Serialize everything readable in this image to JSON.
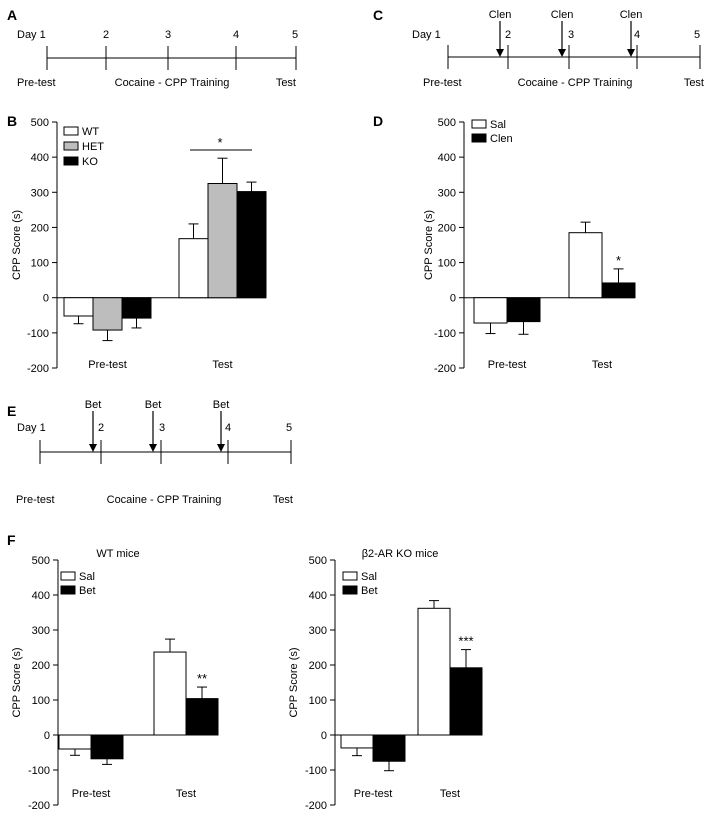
{
  "panel_labels": {
    "A": "A",
    "B": "B",
    "C": "C",
    "D": "D",
    "E": "E",
    "F": "F"
  },
  "timelines": [
    {
      "id": "A",
      "day_labels": [
        "Day 1",
        "2",
        "3",
        "4",
        "5"
      ],
      "phases": [
        "Pre-test",
        "Cocaine - CPP Training",
        "Test"
      ],
      "injections": []
    },
    {
      "id": "C",
      "day_labels": [
        "Day 1",
        "2",
        "3",
        "4",
        "5"
      ],
      "phases": [
        "Pre-test",
        "Cocaine - CPP Training",
        "Test"
      ],
      "injections": [
        "Clen",
        "Clen",
        "Clen"
      ]
    },
    {
      "id": "E",
      "day_labels": [
        "Day 1",
        "2",
        "3",
        "4",
        "5"
      ],
      "phases": [
        "Pre-test",
        "Cocaine - CPP Training",
        "Test"
      ],
      "injections": [
        "Bet",
        "Bet",
        "Bet"
      ]
    }
  ],
  "chart_data": [
    {
      "id": "B",
      "type": "bar",
      "title": "",
      "ylabel": "CPP Score (s)",
      "ylim": [
        -200,
        500
      ],
      "yticks": [
        "-200",
        "-100",
        "0",
        "100",
        "200",
        "300",
        "400",
        "500"
      ],
      "categories": [
        "Pre-test",
        "Test"
      ],
      "series": [
        {
          "name": "WT",
          "color": "#ffffff",
          "values": [
            -52,
            168
          ],
          "errors": [
            22,
            42
          ]
        },
        {
          "name": "HET",
          "color": "#bdbdbd",
          "values": [
            -92,
            325
          ],
          "errors": [
            30,
            72
          ]
        },
        {
          "name": "KO",
          "color": "#000000",
          "values": [
            -58,
            302
          ],
          "errors": [
            28,
            27
          ]
        }
      ],
      "significance": [
        {
          "label": "*",
          "over": "Test"
        }
      ]
    },
    {
      "id": "D",
      "type": "bar",
      "title": "",
      "ylabel": "CPP Score (s)",
      "ylim": [
        -200,
        500
      ],
      "yticks": [
        "-200",
        "-100",
        "0",
        "100",
        "200",
        "300",
        "400",
        "500"
      ],
      "categories": [
        "Pre-test",
        "Test"
      ],
      "series": [
        {
          "name": "Sal",
          "color": "#ffffff",
          "values": [
            -72,
            185
          ],
          "errors": [
            30,
            30
          ]
        },
        {
          "name": "Clen",
          "color": "#000000",
          "values": [
            -68,
            42
          ],
          "errors": [
            36,
            40
          ]
        }
      ],
      "significance": [
        {
          "label": "*",
          "over": "Test"
        }
      ]
    },
    {
      "id": "F-WT",
      "type": "bar",
      "title": "WT mice",
      "ylabel": "CPP Score (s)",
      "ylim": [
        -200,
        500
      ],
      "yticks": [
        "-200",
        "-100",
        "0",
        "100",
        "200",
        "300",
        "400",
        "500"
      ],
      "categories": [
        "Pre-test",
        "Test"
      ],
      "series": [
        {
          "name": "Sal",
          "color": "#ffffff",
          "values": [
            -40,
            237
          ],
          "errors": [
            18,
            37
          ]
        },
        {
          "name": "Bet",
          "color": "#000000",
          "values": [
            -68,
            104
          ],
          "errors": [
            16,
            33
          ]
        }
      ],
      "significance": [
        {
          "label": "**",
          "over": "Test"
        }
      ]
    },
    {
      "id": "F-KO",
      "type": "bar",
      "title": "β2-AR KO mice",
      "ylabel": "CPP Score (s)",
      "ylim": [
        -200,
        500
      ],
      "yticks": [
        "-200",
        "-100",
        "0",
        "100",
        "200",
        "300",
        "400",
        "500"
      ],
      "categories": [
        "Pre-test",
        "Test"
      ],
      "series": [
        {
          "name": "Sal",
          "color": "#ffffff",
          "values": [
            -37,
            362
          ],
          "errors": [
            22,
            22
          ]
        },
        {
          "name": "Bet",
          "color": "#000000",
          "values": [
            -75,
            192
          ],
          "errors": [
            27,
            52
          ]
        }
      ],
      "significance": [
        {
          "label": "***",
          "over": "Test"
        }
      ]
    }
  ]
}
